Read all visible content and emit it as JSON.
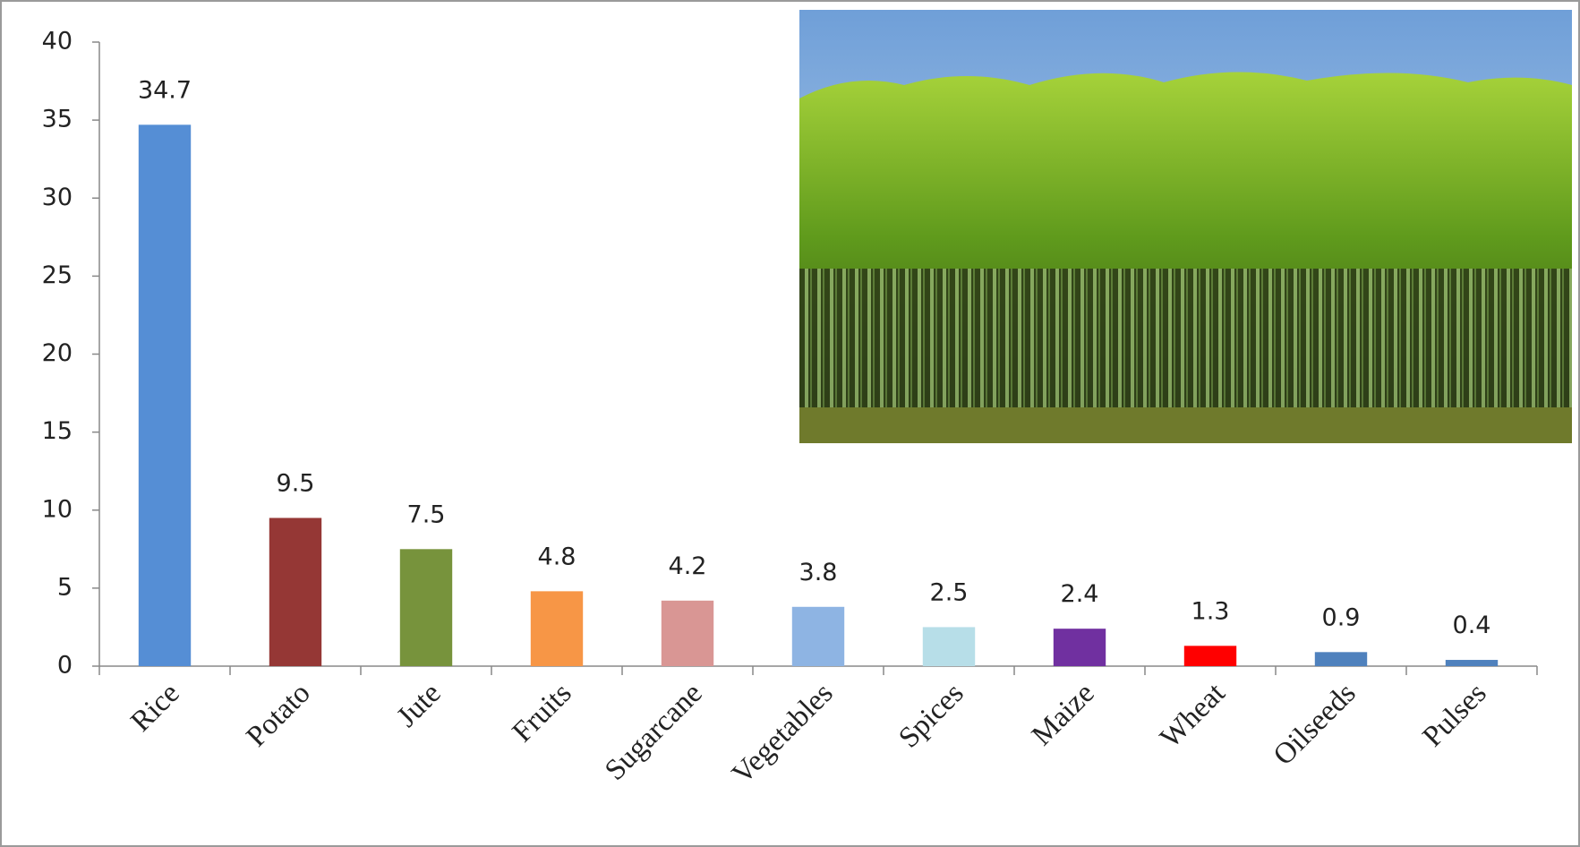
{
  "chart_data": {
    "type": "bar",
    "categories": [
      "Rice",
      "Potato",
      "Jute",
      "Fruits",
      "Sugarcane",
      "Vegetables",
      "Spices",
      "Maize",
      "Wheat",
      "Oilseeds",
      "Pulses"
    ],
    "values": [
      34.7,
      9.5,
      7.5,
      4.8,
      4.2,
      3.8,
      2.5,
      2.4,
      1.3,
      0.9,
      0.4
    ],
    "colors": [
      "#558ed5",
      "#953735",
      "#77933c",
      "#f79646",
      "#d99694",
      "#8eb4e3",
      "#b7dee8",
      "#7030a0",
      "#ff0000",
      "#4f81bd",
      "#4f81bd"
    ],
    "ylim": [
      0,
      40
    ],
    "yticks": [
      0,
      5,
      10,
      15,
      20,
      25,
      30,
      35,
      40
    ],
    "grid": false
  }
}
